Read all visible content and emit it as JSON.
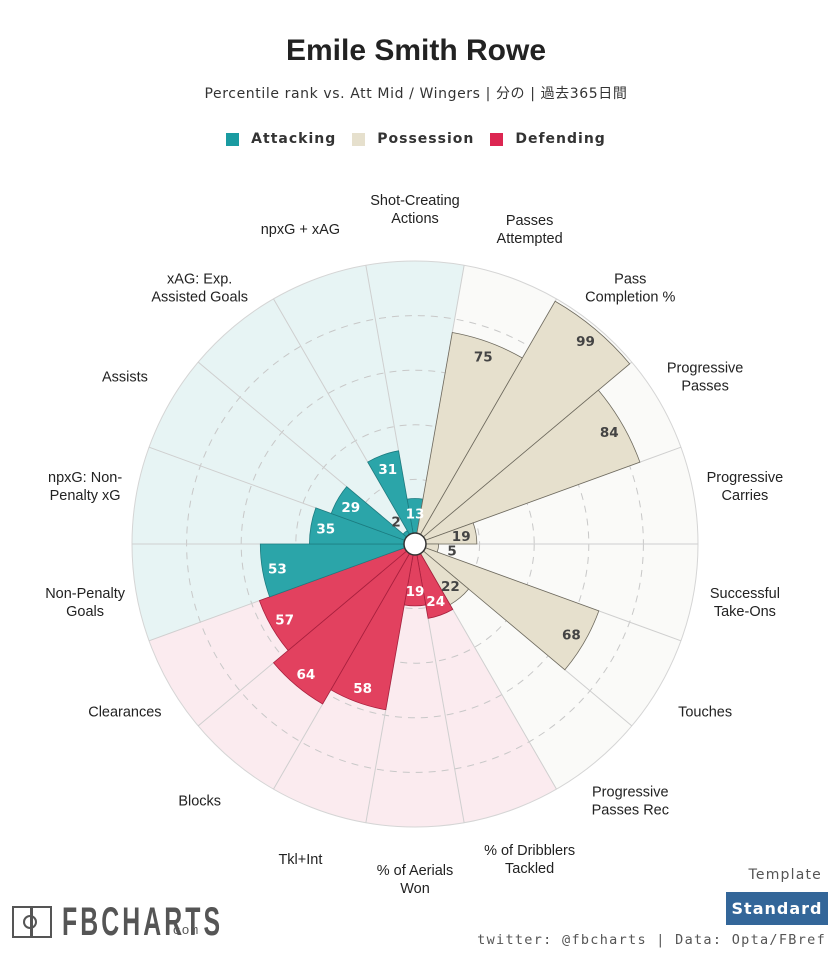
{
  "header": {
    "title": "Emile Smith Rowe",
    "subtitle": "Percentile rank vs. Att Mid / Wingers | 分の | 過去365日間"
  },
  "legend": [
    {
      "label": "Attacking",
      "color": "#1a9ba1"
    },
    {
      "label": "Possession",
      "color": "#e6e0cd"
    },
    {
      "label": "Defending",
      "color": "#dc2651"
    }
  ],
  "colors": {
    "attacking_fill": "#2ba5a9",
    "attacking_bg": "#e7f4f4",
    "possession_fill": "#e6e0cd",
    "possession_bg": "#fafaf8",
    "defending_fill": "#e2415f",
    "defending_bg": "#fbebef"
  },
  "chart_data": {
    "type": "polar-bar",
    "rlim": [
      0,
      100
    ],
    "grid": true,
    "legend_position": "top",
    "categories": [
      {
        "label": [
          "Shot-Creating",
          "Actions"
        ],
        "value": 13,
        "group": "Attacking"
      },
      {
        "label": [
          "Passes",
          "Attempted"
        ],
        "value": 75,
        "group": "Possession"
      },
      {
        "label": [
          "Pass",
          "Completion %"
        ],
        "value": 99,
        "group": "Possession"
      },
      {
        "label": [
          "Progressive",
          "Passes"
        ],
        "value": 84,
        "group": "Possession"
      },
      {
        "label": [
          "Progressive",
          "Carries"
        ],
        "value": 19,
        "group": "Possession"
      },
      {
        "label": [
          "Successful",
          "Take-Ons"
        ],
        "value": 5,
        "group": "Possession"
      },
      {
        "label": [
          "Touches"
        ],
        "value": 68,
        "group": "Possession"
      },
      {
        "label": [
          "Progressive",
          "Passes Rec"
        ],
        "value": 22,
        "group": "Possession"
      },
      {
        "label": [
          "% of Dribblers",
          "Tackled"
        ],
        "value": 24,
        "group": "Defending"
      },
      {
        "label": [
          "% of Aerials",
          "Won"
        ],
        "value": 19,
        "group": "Defending"
      },
      {
        "label": [
          "Tkl+Int"
        ],
        "value": 58,
        "group": "Defending"
      },
      {
        "label": [
          "Blocks"
        ],
        "value": 64,
        "group": "Defending"
      },
      {
        "label": [
          "Clearances"
        ],
        "value": 57,
        "group": "Defending"
      },
      {
        "label": [
          "Non-Penalty",
          "Goals"
        ],
        "value": 53,
        "group": "Attacking"
      },
      {
        "label": [
          "npxG: Non-",
          "Penalty xG"
        ],
        "value": 35,
        "group": "Attacking"
      },
      {
        "label": [
          "Assists"
        ],
        "value": 29,
        "group": "Attacking"
      },
      {
        "label": [
          "xAG: Exp.",
          "Assisted Goals"
        ],
        "value": 2,
        "group": "Attacking"
      },
      {
        "label": [
          "npxG + xAG"
        ],
        "value": 31,
        "group": "Attacking"
      }
    ]
  },
  "footer": {
    "template_label": "Template",
    "template_button": "Standard",
    "credit": "twitter: @fbcharts | Data: Opta/FBref",
    "logo_text": "FBCHARTS",
    "logo_suffix": ".com"
  }
}
